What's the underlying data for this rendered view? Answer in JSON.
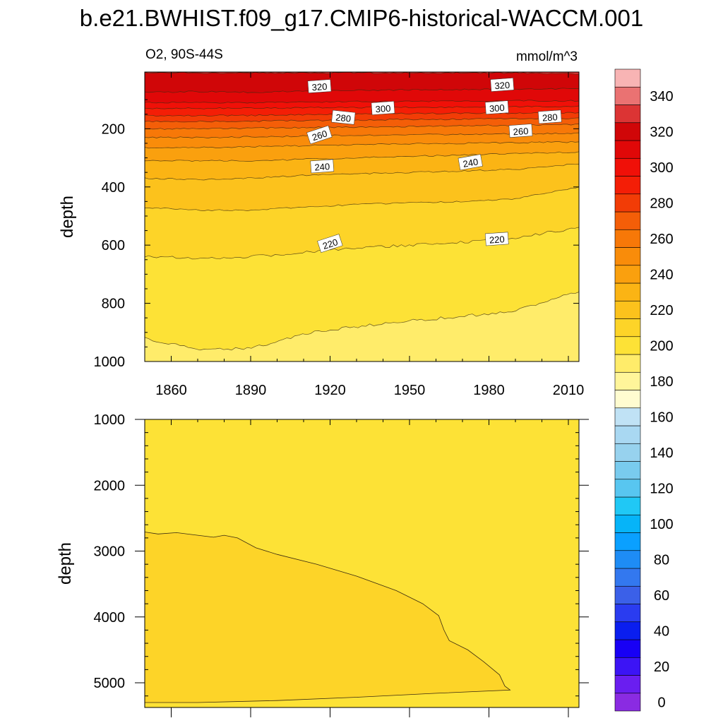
{
  "title": "b.e21.BWHIST.f09_g17.CMIP6-historical-WACCM.001",
  "left_label": "O2, 90S-44S",
  "units_label": "mmol/m^3",
  "colorbar": {
    "levels": [
      0,
      10,
      20,
      30,
      40,
      50,
      60,
      70,
      80,
      90,
      100,
      110,
      120,
      130,
      140,
      150,
      160,
      170,
      180,
      190,
      200,
      210,
      220,
      230,
      240,
      250,
      260,
      270,
      280,
      290,
      300,
      310,
      320,
      330,
      340,
      350
    ],
    "colors": [
      "#8a2be2",
      "#6a1ef0",
      "#3c14f5",
      "#1800f5",
      "#0a1eef",
      "#2a3cf0",
      "#3b60e8",
      "#3378ef",
      "#1e8cf5",
      "#0aa0ff",
      "#06b4f8",
      "#20c8f5",
      "#58c6f0",
      "#79cbee",
      "#97d2ee",
      "#a9d8f2",
      "#c0e2f5",
      "#fffcd0",
      "#fff59a",
      "#ffec6a",
      "#fde236",
      "#fdd428",
      "#fcc21c",
      "#fbb414",
      "#faa00e",
      "#f98c0a",
      "#f77808",
      "#f45e08",
      "#f23c06",
      "#f41e06",
      "#f01008",
      "#e00808",
      "#d00608",
      "#dc3434",
      "#ea7272",
      "#f8b4b4"
    ],
    "tick_labels": [
      "0",
      "20",
      "40",
      "60",
      "80",
      "100",
      "120",
      "140",
      "160",
      "180",
      "200",
      "220",
      "240",
      "260",
      "280",
      "300",
      "320",
      "340"
    ]
  },
  "chart_data": [
    {
      "type": "heatmap",
      "panel": "upper",
      "subtitle": "O2, 90S-44S",
      "units": "mmol/m^3",
      "xlabel": "",
      "ylabel": "depth",
      "xlim": [
        1850,
        2014
      ],
      "ylim": [
        1000,
        5
      ],
      "xticks": [
        "1860",
        "1890",
        "1920",
        "1950",
        "1980",
        "2010"
      ],
      "xtick_values": [
        1860,
        1890,
        1920,
        1950,
        1980,
        2010
      ],
      "yticks": [
        "200",
        "400",
        "600",
        "800",
        "1000"
      ],
      "ytick_values": [
        200,
        400,
        600,
        800,
        1000
      ],
      "contour_levels": [
        200,
        210,
        220,
        230,
        240,
        250,
        260,
        270,
        280,
        290,
        300,
        310,
        320,
        330
      ],
      "contour_x": [
        1850,
        1870,
        1890,
        1910,
        1930,
        1950,
        1970,
        1990,
        2014
      ],
      "contour_depths": {
        "200": [
          920,
          960,
          955,
          905,
          880,
          860,
          845,
          825,
          760
        ],
        "210": [
          640,
          645,
          640,
          625,
          610,
          600,
          590,
          575,
          540
        ],
        "220": [
          470,
          480,
          480,
          470,
          460,
          455,
          450,
          440,
          400
        ],
        "230": [
          370,
          375,
          370,
          360,
          355,
          350,
          345,
          340,
          320
        ],
        "240": [
          310,
          310,
          310,
          305,
          300,
          295,
          290,
          285,
          280
        ],
        "250": [
          265,
          265,
          262,
          258,
          255,
          252,
          250,
          248,
          245
        ],
        "260": [
          230,
          230,
          228,
          225,
          222,
          220,
          220,
          218,
          215
        ],
        "270": [
          200,
          200,
          198,
          196,
          194,
          192,
          190,
          188,
          185
        ],
        "280": [
          175,
          175,
          174,
          172,
          170,
          168,
          167,
          165,
          165
        ],
        "290": [
          155,
          155,
          154,
          152,
          150,
          148,
          147,
          146,
          145
        ],
        "300": [
          130,
          130,
          130,
          128,
          127,
          126,
          125,
          124,
          124
        ],
        "310": [
          110,
          110,
          110,
          108,
          107,
          106,
          105,
          104,
          104
        ],
        "320": [
          75,
          72,
          75,
          70,
          68,
          66,
          65,
          64,
          62
        ],
        "330": [
          8,
          8,
          8,
          8,
          8,
          8,
          8,
          8,
          12
        ]
      },
      "contour_labels": [
        {
          "text": "320",
          "x": 1916,
          "depth": 55
        },
        {
          "text": "320",
          "x": 1985,
          "depth": 50
        },
        {
          "text": "300",
          "x": 1940,
          "depth": 130
        },
        {
          "text": "300",
          "x": 1983,
          "depth": 128
        },
        {
          "text": "280",
          "x": 1925,
          "depth": 162
        },
        {
          "text": "280",
          "x": 2003,
          "depth": 160
        },
        {
          "text": "260",
          "x": 1916,
          "depth": 222
        },
        {
          "text": "260",
          "x": 1992,
          "depth": 208
        },
        {
          "text": "240",
          "x": 1917,
          "depth": 330
        },
        {
          "text": "240",
          "x": 1973,
          "depth": 316
        },
        {
          "text": "220",
          "x": 1920,
          "depth": 595
        },
        {
          "text": "220",
          "x": 1983,
          "depth": 580
        }
      ]
    },
    {
      "type": "heatmap",
      "panel": "lower",
      "xlabel": "",
      "ylabel": "depth",
      "xlim": [
        1850,
        2014
      ],
      "ylim": [
        5375,
        1000
      ],
      "yticks": [
        "1000",
        "2000",
        "3000",
        "4000",
        "5000"
      ],
      "ytick_values": [
        1000,
        2000,
        3000,
        4000,
        5000
      ],
      "background_level": 200,
      "region_level": 210,
      "region_outline": [
        {
          "x": 1850,
          "depth": 2710
        },
        {
          "x": 1855,
          "depth": 2740
        },
        {
          "x": 1862,
          "depth": 2720
        },
        {
          "x": 1870,
          "depth": 2760
        },
        {
          "x": 1876,
          "depth": 2790
        },
        {
          "x": 1880,
          "depth": 2760
        },
        {
          "x": 1885,
          "depth": 2800
        },
        {
          "x": 1892,
          "depth": 2950
        },
        {
          "x": 1900,
          "depth": 3050
        },
        {
          "x": 1915,
          "depth": 3200
        },
        {
          "x": 1930,
          "depth": 3380
        },
        {
          "x": 1945,
          "depth": 3600
        },
        {
          "x": 1955,
          "depth": 3800
        },
        {
          "x": 1961,
          "depth": 3980
        },
        {
          "x": 1963,
          "depth": 4200
        },
        {
          "x": 1965,
          "depth": 4360
        },
        {
          "x": 1972,
          "depth": 4500
        },
        {
          "x": 1978,
          "depth": 4680
        },
        {
          "x": 1984,
          "depth": 4880
        },
        {
          "x": 1986,
          "depth": 5050
        },
        {
          "x": 1988,
          "depth": 5110
        },
        {
          "x": 1960,
          "depth": 5160
        },
        {
          "x": 1930,
          "depth": 5220
        },
        {
          "x": 1900,
          "depth": 5270
        },
        {
          "x": 1870,
          "depth": 5300
        },
        {
          "x": 1850,
          "depth": 5300
        }
      ]
    }
  ]
}
